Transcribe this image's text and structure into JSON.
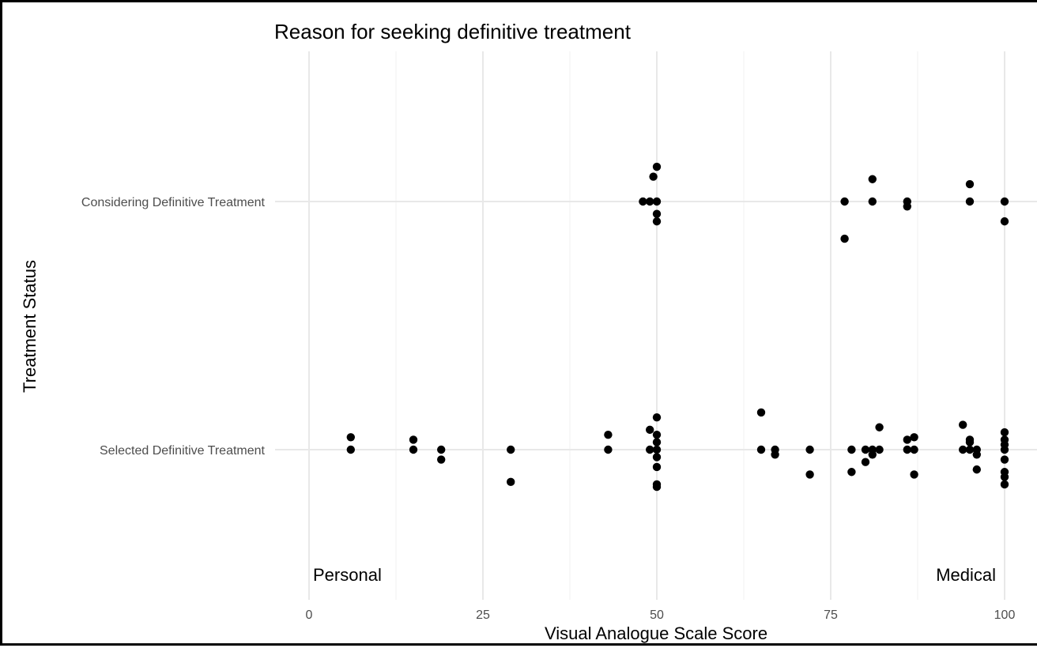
{
  "chart_data": {
    "type": "scatter",
    "title": "Reason for seeking definitive treatment",
    "xlabel": "Visual Analogue Scale Score",
    "ylabel": "Treatment Status",
    "xlim": [
      -1,
      101
    ],
    "x_ticks": [
      0,
      25,
      50,
      75,
      100
    ],
    "x_minor_ticks": [
      12.5,
      37.5,
      62.5,
      87.5
    ],
    "categories": [
      "Selected Definitive Treatment",
      "Considering Definitive Treatment"
    ],
    "grid": true,
    "legend": "none",
    "annotations": [
      {
        "text": "Personal",
        "x": 6,
        "position": "bottom-left"
      },
      {
        "text": "Medical",
        "x": 94,
        "position": "bottom-right"
      }
    ],
    "point_color": "#000000",
    "series": [
      {
        "category": "Considering Definitive Treatment",
        "points": [
          {
            "x": 48,
            "y": 0
          },
          {
            "x": 49,
            "y": 0
          },
          {
            "x": 50,
            "y": 0
          },
          {
            "x": 49.5,
            "y": 0.1
          },
          {
            "x": 50,
            "y": 0.14
          },
          {
            "x": 50,
            "y": -0.05
          },
          {
            "x": 50,
            "y": -0.08
          },
          {
            "x": 77,
            "y": 0
          },
          {
            "x": 77,
            "y": -0.15
          },
          {
            "x": 81,
            "y": 0
          },
          {
            "x": 81,
            "y": 0.09
          },
          {
            "x": 86,
            "y": 0
          },
          {
            "x": 86,
            "y": -0.02
          },
          {
            "x": 95,
            "y": 0
          },
          {
            "x": 95,
            "y": 0.07
          },
          {
            "x": 100,
            "y": 0
          },
          {
            "x": 100,
            "y": -0.08
          }
        ]
      },
      {
        "category": "Selected Definitive Treatment",
        "points": [
          {
            "x": 6,
            "y": 0
          },
          {
            "x": 6,
            "y": 0.05
          },
          {
            "x": 15,
            "y": 0
          },
          {
            "x": 15,
            "y": 0.04
          },
          {
            "x": 19,
            "y": 0
          },
          {
            "x": 19,
            "y": -0.04
          },
          {
            "x": 29,
            "y": 0
          },
          {
            "x": 29,
            "y": -0.13
          },
          {
            "x": 43,
            "y": 0
          },
          {
            "x": 43,
            "y": 0.06
          },
          {
            "x": 49,
            "y": 0
          },
          {
            "x": 49,
            "y": 0.08
          },
          {
            "x": 50,
            "y": 0
          },
          {
            "x": 50,
            "y": 0.03
          },
          {
            "x": 50,
            "y": 0.06
          },
          {
            "x": 50,
            "y": 0.13
          },
          {
            "x": 50,
            "y": -0.03
          },
          {
            "x": 50,
            "y": -0.07
          },
          {
            "x": 50,
            "y": -0.14
          },
          {
            "x": 50,
            "y": -0.15
          },
          {
            "x": 65,
            "y": 0
          },
          {
            "x": 65,
            "y": 0.15
          },
          {
            "x": 67,
            "y": 0
          },
          {
            "x": 67,
            "y": -0.02
          },
          {
            "x": 72,
            "y": 0
          },
          {
            "x": 72,
            "y": -0.1
          },
          {
            "x": 78,
            "y": 0
          },
          {
            "x": 78,
            "y": -0.09
          },
          {
            "x": 80,
            "y": 0
          },
          {
            "x": 80,
            "y": -0.05
          },
          {
            "x": 81,
            "y": 0
          },
          {
            "x": 81,
            "y": -0.02
          },
          {
            "x": 82,
            "y": 0
          },
          {
            "x": 82,
            "y": 0.09
          },
          {
            "x": 86,
            "y": 0
          },
          {
            "x": 86,
            "y": 0.04
          },
          {
            "x": 87,
            "y": 0
          },
          {
            "x": 87,
            "y": 0.05
          },
          {
            "x": 87,
            "y": -0.1
          },
          {
            "x": 94,
            "y": 0
          },
          {
            "x": 94,
            "y": 0.1
          },
          {
            "x": 95,
            "y": 0
          },
          {
            "x": 95,
            "y": 0.04
          },
          {
            "x": 95,
            "y": 0.03
          },
          {
            "x": 96,
            "y": 0
          },
          {
            "x": 96,
            "y": -0.02
          },
          {
            "x": 96,
            "y": -0.08
          },
          {
            "x": 100,
            "y": 0
          },
          {
            "x": 100,
            "y": 0.02
          },
          {
            "x": 100,
            "y": 0.04
          },
          {
            "x": 100,
            "y": 0.07
          },
          {
            "x": 100,
            "y": -0.04
          },
          {
            "x": 100,
            "y": -0.09
          },
          {
            "x": 100,
            "y": -0.11
          },
          {
            "x": 100,
            "y": -0.14
          }
        ]
      }
    ]
  }
}
